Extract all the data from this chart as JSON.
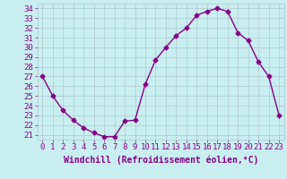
{
  "x": [
    0,
    1,
    2,
    3,
    4,
    5,
    6,
    7,
    8,
    9,
    10,
    11,
    12,
    13,
    14,
    15,
    16,
    17,
    18,
    19,
    20,
    21,
    22,
    23
  ],
  "y": [
    27,
    25,
    23.5,
    22.5,
    21.7,
    21.2,
    20.8,
    20.8,
    22.4,
    22.5,
    26.2,
    28.7,
    30.0,
    31.2,
    32.0,
    33.3,
    33.7,
    34.0,
    33.7,
    31.5,
    30.7,
    28.5,
    27.0,
    23.0
  ],
  "line_color": "#880088",
  "marker": "D",
  "marker_size": 2.5,
  "bg_color": "#c8eef0",
  "grid_color": "#b0c8d0",
  "xlabel": "Windchill (Refroidissement éolien,°C)",
  "xlabel_color": "#880088",
  "tick_color": "#880088",
  "ylim_min": 20.5,
  "ylim_max": 34.5,
  "yticks": [
    21,
    22,
    23,
    24,
    25,
    26,
    27,
    28,
    29,
    30,
    31,
    32,
    33,
    34
  ],
  "xticks": [
    0,
    1,
    2,
    3,
    4,
    5,
    6,
    7,
    8,
    9,
    10,
    11,
    12,
    13,
    14,
    15,
    16,
    17,
    18,
    19,
    20,
    21,
    22,
    23
  ],
  "font_size": 6.5,
  "xlabel_fontsize": 7,
  "linewidth": 1.0
}
